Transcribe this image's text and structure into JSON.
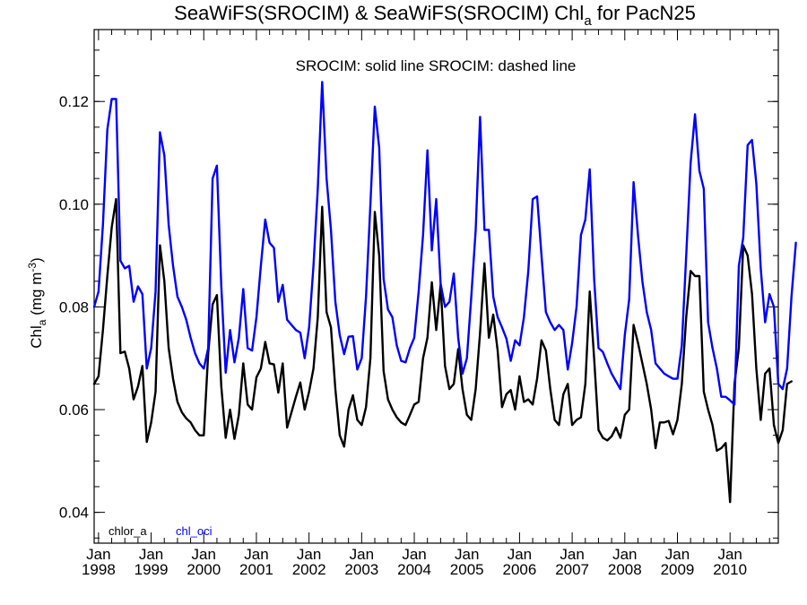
{
  "chart_data": {
    "type": "line",
    "title": "SeaWiFS(SROCIM) & SeaWiFS(SROCIM)  Chl",
    "title_subscript": "a",
    "title_suffix": " for PacN25",
    "annotation": "SROCIM: solid line   SROCIM: dashed line",
    "ylabel": "Chl",
    "ylabel_subscript": "a",
    "ylabel_units": " (mg m",
    "ylabel_units_superscript": "-3",
    "ylabel_units_close": ")",
    "ylim": [
      0.034,
      0.134
    ],
    "xlim": [
      1997.917,
      2010.917
    ],
    "yticks": [
      {
        "value": 0.04,
        "label": "0.04"
      },
      {
        "value": 0.06,
        "label": "0.06"
      },
      {
        "value": 0.08,
        "label": "0.08"
      },
      {
        "value": 0.1,
        "label": "0.10"
      },
      {
        "value": 0.12,
        "label": "0.12"
      }
    ],
    "xticks": [
      {
        "value": 1998,
        "month": "Jan",
        "year": "1998"
      },
      {
        "value": 1999,
        "month": "Jan",
        "year": "1999"
      },
      {
        "value": 2000,
        "month": "Jan",
        "year": "2000"
      },
      {
        "value": 2001,
        "month": "Jan",
        "year": "2001"
      },
      {
        "value": 2002,
        "month": "Jan",
        "year": "2002"
      },
      {
        "value": 2003,
        "month": "Jan",
        "year": "2003"
      },
      {
        "value": 2004,
        "month": "Jan",
        "year": "2004"
      },
      {
        "value": 2005,
        "month": "Jan",
        "year": "2005"
      },
      {
        "value": 2006,
        "month": "Jan",
        "year": "2006"
      },
      {
        "value": 2007,
        "month": "Jan",
        "year": "2007"
      },
      {
        "value": 2008,
        "month": "Jan",
        "year": "2008"
      },
      {
        "value": 2009,
        "month": "Jan",
        "year": "2009"
      },
      {
        "value": 2010,
        "month": "Jan",
        "year": "2010"
      }
    ],
    "legend": [
      {
        "label": "chlor_a",
        "color": "#000000"
      },
      {
        "label": "chl_oci",
        "color": "#0000ff"
      }
    ],
    "x_start": 1997.917,
    "x_step_months": 1,
    "series": [
      {
        "name": "chlor_a",
        "color": "#000000",
        "values": [
          0.065,
          0.0665,
          0.0755,
          0.086,
          0.0955,
          0.101,
          0.071,
          0.0713,
          0.068,
          0.062,
          0.0645,
          0.0685,
          0.0537,
          0.0575,
          0.0635,
          0.092,
          0.085,
          0.072,
          0.066,
          0.0615,
          0.0595,
          0.0583,
          0.0575,
          0.056,
          0.055,
          0.055,
          0.071,
          0.0805,
          0.0823,
          0.0645,
          0.0545,
          0.06,
          0.0543,
          0.059,
          0.069,
          0.061,
          0.06,
          0.0663,
          0.068,
          0.0732,
          0.069,
          0.0688,
          0.0633,
          0.069,
          0.0565,
          0.0595,
          0.0625,
          0.0653,
          0.06,
          0.0635,
          0.068,
          0.078,
          0.0995,
          0.079,
          0.076,
          0.064,
          0.055,
          0.0528,
          0.06,
          0.0628,
          0.058,
          0.057,
          0.0605,
          0.07,
          0.0985,
          0.09,
          0.0675,
          0.062,
          0.06,
          0.0585,
          0.0575,
          0.057,
          0.059,
          0.061,
          0.0615,
          0.07,
          0.074,
          0.0848,
          0.0755,
          0.0843,
          0.0685,
          0.064,
          0.065,
          0.0718,
          0.064,
          0.059,
          0.058,
          0.064,
          0.075,
          0.0885,
          0.074,
          0.0785,
          0.0715,
          0.0605,
          0.063,
          0.0638,
          0.06,
          0.0665,
          0.0615,
          0.062,
          0.061,
          0.066,
          0.0735,
          0.0715,
          0.064,
          0.058,
          0.057,
          0.063,
          0.065,
          0.057,
          0.058,
          0.0585,
          0.065,
          0.083,
          0.07,
          0.056,
          0.0545,
          0.054,
          0.0548,
          0.0565,
          0.0545,
          0.059,
          0.06,
          0.0765,
          0.073,
          0.069,
          0.065,
          0.06,
          0.0525,
          0.0575,
          0.0575,
          0.0578,
          0.0552,
          0.058,
          0.065,
          0.078,
          0.087,
          0.086,
          0.086,
          0.0635,
          0.06,
          0.057,
          0.052,
          0.0525,
          0.0535,
          0.042,
          0.065,
          0.072,
          0.092,
          0.09,
          0.0825,
          0.068,
          0.058,
          0.067,
          0.068,
          0.057,
          0.0535,
          0.056,
          0.065,
          0.0655
        ]
      },
      {
        "name": "chl_oci",
        "color": "#0000ff",
        "values": [
          0.08,
          0.083,
          0.096,
          0.1145,
          0.1205,
          0.1205,
          0.089,
          0.0875,
          0.088,
          0.081,
          0.084,
          0.0825,
          0.068,
          0.072,
          0.083,
          0.114,
          0.1095,
          0.096,
          0.088,
          0.082,
          0.08,
          0.0775,
          0.074,
          0.071,
          0.069,
          0.068,
          0.072,
          0.105,
          0.1075,
          0.084,
          0.0672,
          0.0755,
          0.0692,
          0.074,
          0.0835,
          0.072,
          0.0715,
          0.078,
          0.088,
          0.097,
          0.0925,
          0.0915,
          0.081,
          0.0843,
          0.0775,
          0.0765,
          0.0755,
          0.075,
          0.07,
          0.076,
          0.088,
          0.103,
          0.1238,
          0.105,
          0.095,
          0.081,
          0.0745,
          0.0708,
          0.0742,
          0.0743,
          0.0678,
          0.07,
          0.082,
          0.1,
          0.119,
          0.111,
          0.0855,
          0.0795,
          0.078,
          0.0725,
          0.0695,
          0.0692,
          0.072,
          0.074,
          0.083,
          0.094,
          0.1105,
          0.091,
          0.101,
          0.0845,
          0.08,
          0.081,
          0.0865,
          0.074,
          0.067,
          0.07,
          0.082,
          0.095,
          0.117,
          0.095,
          0.095,
          0.082,
          0.078,
          0.076,
          0.0738,
          0.0695,
          0.0735,
          0.0725,
          0.078,
          0.087,
          0.101,
          0.1015,
          0.09,
          0.079,
          0.077,
          0.0755,
          0.0765,
          0.0755,
          0.0678,
          0.073,
          0.08,
          0.094,
          0.097,
          0.1068,
          0.0855,
          0.072,
          0.0712,
          0.069,
          0.067,
          0.0655,
          0.064,
          0.0745,
          0.0815,
          0.1043,
          0.094,
          0.085,
          0.079,
          0.0755,
          0.069,
          0.068,
          0.067,
          0.0665,
          0.066,
          0.066,
          0.0725,
          0.09,
          0.108,
          0.1175,
          0.1065,
          0.103,
          0.077,
          0.072,
          0.068,
          0.0625,
          0.0625,
          0.0618,
          0.061,
          0.088,
          0.0935,
          0.1115,
          0.1125,
          0.104,
          0.0875,
          0.077,
          0.0825,
          0.08,
          0.065,
          0.064,
          0.068,
          0.082,
          0.0925
        ]
      }
    ]
  }
}
